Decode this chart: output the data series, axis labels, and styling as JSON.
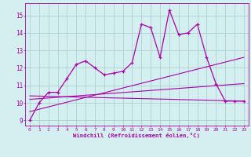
{
  "x": [
    0,
    1,
    2,
    3,
    4,
    5,
    6,
    7,
    8,
    9,
    10,
    11,
    12,
    13,
    14,
    15,
    16,
    17,
    18,
    19,
    20,
    21,
    22,
    23
  ],
  "line1": [
    9.0,
    10.0,
    10.6,
    10.6,
    11.4,
    12.2,
    12.4,
    12.0,
    11.6,
    11.7,
    11.8,
    12.3,
    14.5,
    14.3,
    12.6,
    15.3,
    13.9,
    14.0,
    14.5,
    12.6,
    11.1,
    10.1,
    10.1,
    10.1
  ],
  "line2_y": [
    9.5,
    12.6
  ],
  "line3_y": [
    10.2,
    11.1
  ],
  "line4_y": [
    10.4,
    10.1
  ],
  "line_color": "#aa00aa",
  "bg_color": "#d4efef",
  "grid_color": "#aed0d0",
  "xlabel": "Windchill (Refroidissement éolien,°C)",
  "ylim": [
    8.7,
    15.7
  ],
  "xlim": [
    -0.5,
    23.5
  ],
  "yticks": [
    9,
    10,
    11,
    12,
    13,
    14,
    15
  ],
  "xticks": [
    0,
    1,
    2,
    3,
    4,
    5,
    6,
    7,
    8,
    9,
    10,
    11,
    12,
    13,
    14,
    15,
    16,
    17,
    18,
    19,
    20,
    21,
    22,
    23
  ]
}
